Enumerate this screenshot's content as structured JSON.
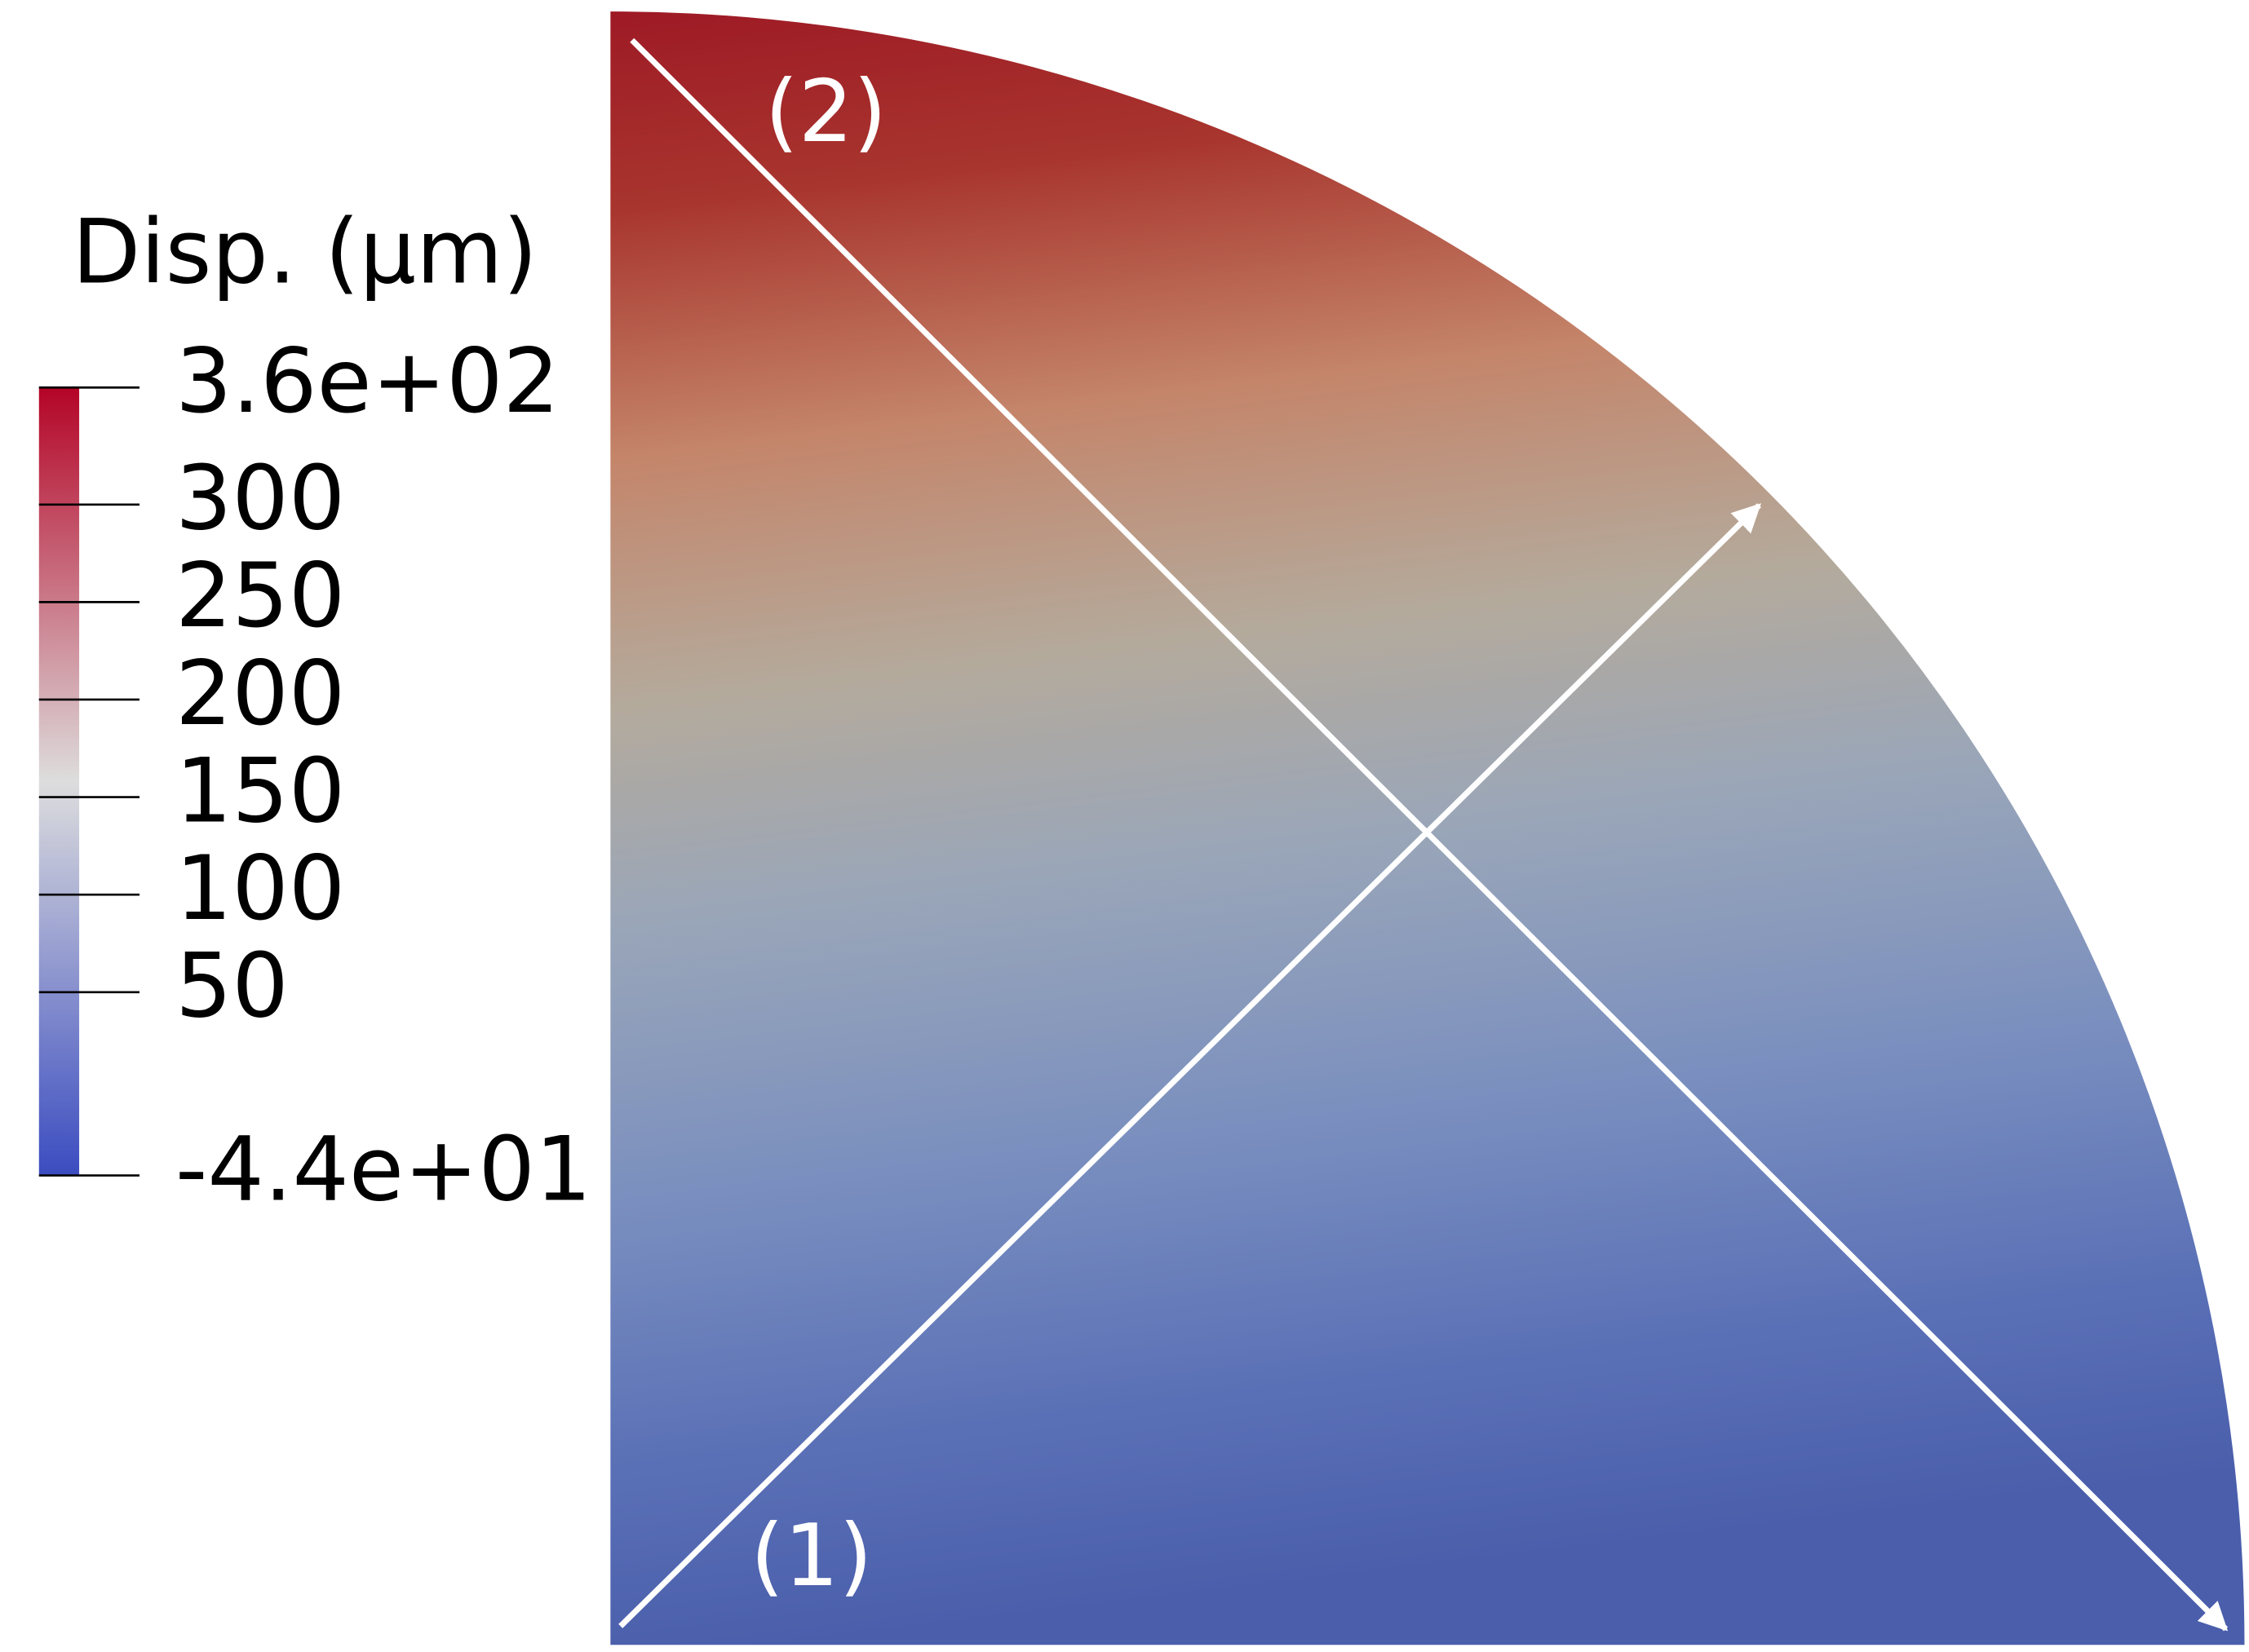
{
  "chart_data": {
    "type": "field",
    "colorbar": {
      "title": "Disp. (μm)",
      "lim": [
        -44,
        360
      ],
      "ticks": [
        {
          "value": 360,
          "label": "3.6e+02"
        },
        300,
        250,
        200,
        150,
        100,
        50,
        {
          "value": -44,
          "label": "-4.4e+01"
        }
      ],
      "colormap": [
        "#3b4cc0",
        "#dddddd",
        "#b40426"
      ]
    },
    "annotations": [
      "(1)",
      "(2)"
    ]
  }
}
